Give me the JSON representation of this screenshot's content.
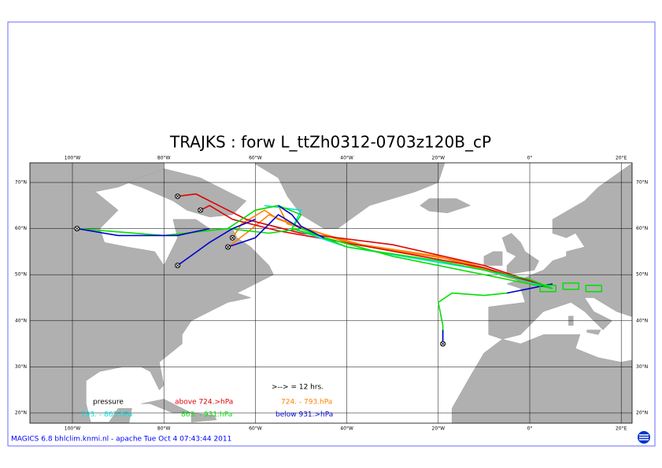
{
  "title": "TRAJKS : forw L_ttZh0312-0703z120B_cP",
  "lon_labels": [
    "100°W",
    "80°W",
    "60°W",
    "40°W",
    "20°W",
    "0°",
    "20°E"
  ],
  "lat_labels": [
    "70°N",
    "60°N",
    "50°N",
    "40°N",
    "30°N",
    "20°N"
  ],
  "legend": {
    "interval": ">--> = 12 hrs.",
    "heading": "pressure",
    "entries": [
      {
        "label": "above  724.>hPa",
        "color": "#e00000"
      },
      {
        "label": "724. -  793.hPa",
        "color": "#ff8000"
      },
      {
        "label": "793. -  863.hPa",
        "color": "#00e0e0"
      },
      {
        "label": "863. -  931.hPa",
        "color": "#00e000"
      },
      {
        "label": "below  931.>hPa",
        "color": "#0000d0"
      }
    ]
  },
  "footer": "MAGICS 6.8 bhlclim.knmi.nl - apache Tue Oct  4 07:43:44 2011"
}
